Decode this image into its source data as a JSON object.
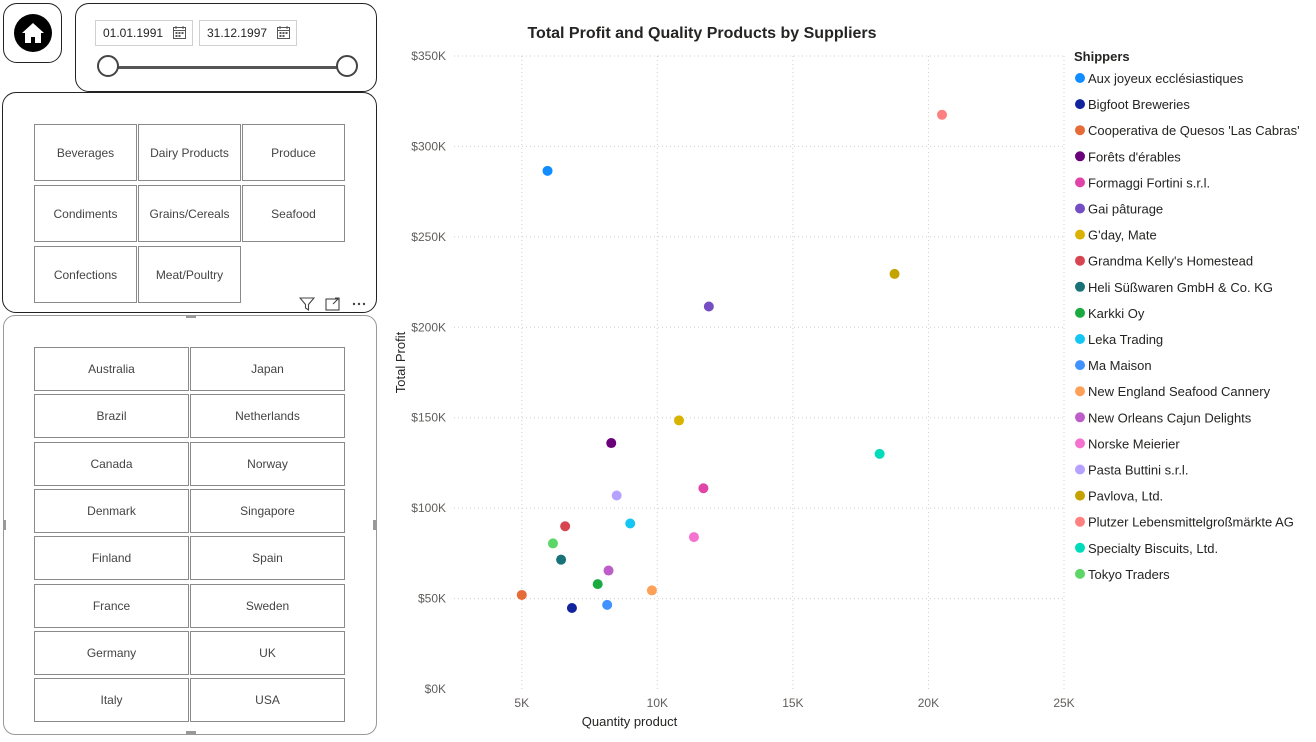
{
  "date_filter": {
    "start": "01.01.1991",
    "end": "31.12.1997"
  },
  "categories": [
    "Beverages",
    "Dairy Products",
    "Produce",
    "Condiments",
    "Grains/Cereals",
    "Seafood",
    "Confections",
    "Meat/Poultry"
  ],
  "countries": [
    "Australia",
    "Japan",
    "Brazil",
    "Netherlands",
    "Canada",
    "Norway",
    "Denmark",
    "Singapore",
    "Finland",
    "Spain",
    "France",
    "Sweden",
    "Germany",
    "UK",
    "Italy",
    "USA"
  ],
  "visual_header_icons": [
    "filter-icon",
    "focus-mode-icon",
    "more-options-icon"
  ],
  "chart_data": {
    "type": "scatter",
    "title": "Total Profit and Quality Products by Suppliers",
    "xlabel": "Quantity product",
    "ylabel": "Total Profit",
    "xlim": [
      2500,
      25000
    ],
    "ylim": [
      0,
      350000
    ],
    "xticks": [
      5000,
      10000,
      15000,
      20000,
      25000
    ],
    "xtick_labels": [
      "5K",
      "10K",
      "15K",
      "20K",
      "25K"
    ],
    "yticks": [
      0,
      50000,
      100000,
      150000,
      200000,
      250000,
      300000,
      350000
    ],
    "ytick_labels": [
      "$0K",
      "$50K",
      "$100K",
      "$150K",
      "$200K",
      "$250K",
      "$300K",
      "$350K"
    ],
    "grid": true,
    "legend_title": "Shippers",
    "legend_position": "right",
    "series": [
      {
        "name": "Aux joyeux ecclésiastiques",
        "color": "#118DFF",
        "x": 5950,
        "y": 286500
      },
      {
        "name": "Bigfoot Breweries",
        "color": "#12239E",
        "x": 6850,
        "y": 44800
      },
      {
        "name": "Cooperativa de Quesos 'Las Cabras'",
        "color": "#E66C37",
        "x": 5000,
        "y": 52000
      },
      {
        "name": "Forêts d'érables",
        "color": "#6B007B",
        "x": 8300,
        "y": 136000
      },
      {
        "name": "Formaggi Fortini s.r.l.",
        "color": "#E044A7",
        "x": 11700,
        "y": 111000
      },
      {
        "name": "Gai pâturage",
        "color": "#744EC2",
        "x": 11900,
        "y": 211500
      },
      {
        "name": "G'day, Mate",
        "color": "#D9B300",
        "x": 10800,
        "y": 148500
      },
      {
        "name": "Grandma Kelly's Homestead",
        "color": "#D64550",
        "x": 6600,
        "y": 90000
      },
      {
        "name": "Heli Süßwaren GmbH & Co. KG",
        "color": "#197278",
        "x": 6450,
        "y": 71500
      },
      {
        "name": "Karkki Oy",
        "color": "#1AAB40",
        "x": 7800,
        "y": 58000
      },
      {
        "name": "Leka Trading",
        "color": "#15C6F4",
        "x": 9000,
        "y": 91500
      },
      {
        "name": "Ma Maison",
        "color": "#4092FF",
        "x": 8150,
        "y": 46500
      },
      {
        "name": "New England Seafood Cannery",
        "color": "#FFA058",
        "x": 9800,
        "y": 54500
      },
      {
        "name": "New Orleans Cajun Delights",
        "color": "#BE5DC9",
        "x": 8200,
        "y": 65500
      },
      {
        "name": "Norske Meierier",
        "color": "#F472D0",
        "x": 11350,
        "y": 84000
      },
      {
        "name": "Pasta Buttini s.r.l.",
        "color": "#B5A1FF",
        "x": 8500,
        "y": 107000
      },
      {
        "name": "Pavlova, Ltd.",
        "color": "#C4A200",
        "x": 18750,
        "y": 229500
      },
      {
        "name": "Plutzer Lebensmittelgroßmärkte AG",
        "color": "#FF8080",
        "x": 20500,
        "y": 317500
      },
      {
        "name": "Specialty Biscuits, Ltd.",
        "color": "#00DBBC",
        "x": 18200,
        "y": 130000
      },
      {
        "name": "Tokyo Traders",
        "color": "#5BD667",
        "x": 6150,
        "y": 80500
      }
    ]
  }
}
